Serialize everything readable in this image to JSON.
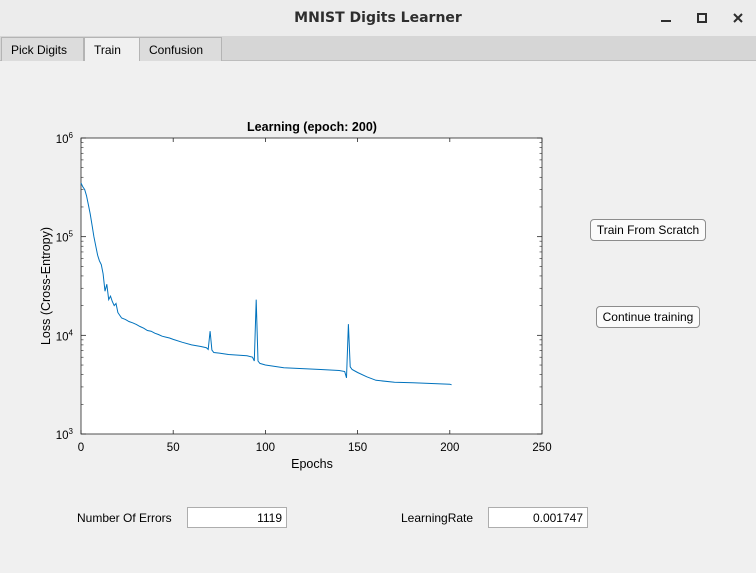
{
  "window": {
    "title": "MNIST Digits Learner"
  },
  "tabs": [
    {
      "label": "Pick Digits",
      "active": false
    },
    {
      "label": "Train",
      "active": true
    },
    {
      "label": "Confusion",
      "active": false
    }
  ],
  "buttons": {
    "train_from_scratch": "Train From Scratch",
    "continue_training": "Continue training"
  },
  "fields": {
    "errors_label": "Number Of Errors",
    "errors_value": "1119",
    "lr_label": "LearningRate",
    "lr_value": "0.001747"
  },
  "chart_data": {
    "type": "line",
    "title": "Learning (epoch: 200)",
    "xlabel": "Epochs",
    "ylabel": "Loss (Cross-Entropy)",
    "xlim": [
      0,
      250
    ],
    "ylim": [
      1000,
      1000000
    ],
    "yscale": "log",
    "xticks": [
      0,
      50,
      100,
      150,
      200,
      250
    ],
    "yticks": [
      {
        "base": "10",
        "exp": "6",
        "value": 1000000
      },
      {
        "base": "10",
        "exp": "5",
        "value": 100000
      },
      {
        "base": "10",
        "exp": "4",
        "value": 10000
      },
      {
        "base": "10",
        "exp": "3",
        "value": 1000
      }
    ],
    "grid": false,
    "line_color": "#0072bd",
    "series": [
      {
        "x": [
          0,
          1,
          2,
          3,
          4,
          5,
          6,
          7,
          8,
          9,
          10,
          11,
          12,
          13,
          14,
          15,
          16,
          17,
          18,
          19,
          20,
          22,
          24,
          26,
          28,
          30,
          32,
          34,
          36,
          38,
          40,
          42,
          44,
          46,
          48,
          50,
          55,
          60,
          65,
          68,
          69,
          70,
          71,
          72,
          75,
          80,
          85,
          90,
          93,
          94,
          95,
          96,
          97,
          100,
          110,
          120,
          130,
          140,
          143,
          144,
          145,
          146,
          147,
          150,
          155,
          160,
          170,
          180,
          190,
          200,
          201
        ],
        "y": [
          350000,
          320000,
          300000,
          260000,
          210000,
          170000,
          130000,
          100000,
          80000,
          65000,
          57000,
          52000,
          42000,
          28000,
          33000,
          23000,
          25000,
          22000,
          20000,
          21000,
          17000,
          15000,
          14500,
          13800,
          13400,
          12900,
          12300,
          11800,
          11200,
          11000,
          10500,
          10200,
          9800,
          9600,
          9400,
          9100,
          8500,
          8000,
          7700,
          7500,
          7200,
          11000,
          7100,
          6700,
          6600,
          6400,
          6300,
          6200,
          6000,
          5500,
          23000,
          5500,
          5200,
          5000,
          4700,
          4600,
          4500,
          4400,
          4300,
          3700,
          13000,
          4800,
          4500,
          4200,
          3800,
          3500,
          3350,
          3300,
          3250,
          3200,
          3150
        ]
      }
    ]
  }
}
